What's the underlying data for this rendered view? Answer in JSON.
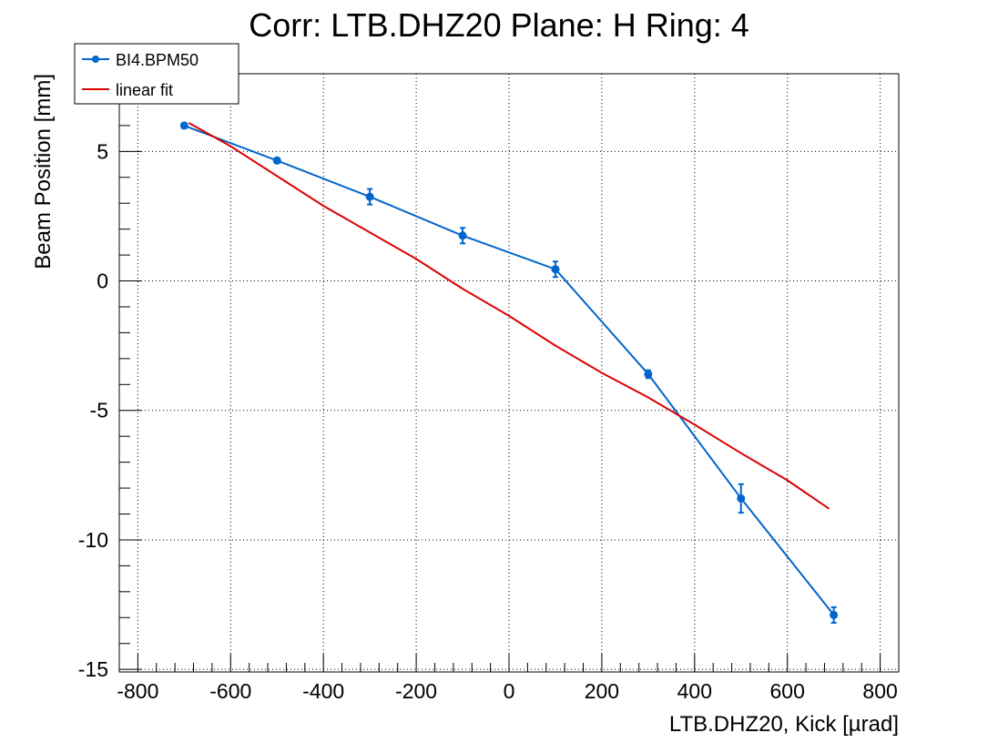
{
  "chart_data": {
    "type": "scatter",
    "title": "Corr: LTB.DHZ20 Plane: H Ring: 4",
    "xlabel": "LTB.DHZ20, Kick [µrad]",
    "ylabel": "Beam Position [mm]",
    "xlim": [
      -840,
      840
    ],
    "ylim": [
      -15.1,
      8.0
    ],
    "x_ticks": [
      -800,
      -600,
      -400,
      -200,
      0,
      200,
      400,
      600,
      800
    ],
    "x_tick_labels": [
      "-800",
      "-600",
      "-400",
      "-200",
      "0",
      "200",
      "400",
      "600",
      "800"
    ],
    "y_ticks": [
      5,
      0,
      -5,
      -10,
      -15
    ],
    "y_tick_labels": [
      "5",
      "0",
      "-5",
      "-10",
      "-15"
    ],
    "grid": true,
    "legend_position": "top-left",
    "series": [
      {
        "name": "BI4.BPM50",
        "kind": "points-with-errors",
        "color": "#0066cc",
        "x": [
          -700,
          -500,
          -300,
          -100,
          100,
          300,
          500,
          700
        ],
        "y": [
          6.0,
          4.65,
          3.25,
          1.75,
          0.45,
          -3.6,
          -8.4,
          -12.9
        ],
        "yerr": [
          0.1,
          0.1,
          0.3,
          0.3,
          0.3,
          0.15,
          0.55,
          0.3
        ]
      },
      {
        "name": "linear fit",
        "kind": "line",
        "color": "#dd0000",
        "x": [
          -690,
          -600,
          -400,
          -200,
          -100,
          0,
          100,
          200,
          300,
          400,
          500,
          600,
          690
        ],
        "y": [
          6.1,
          5.2,
          2.9,
          0.85,
          -0.3,
          -1.35,
          -2.5,
          -3.55,
          -4.5,
          -5.55,
          -6.65,
          -7.7,
          -8.8
        ]
      }
    ]
  }
}
